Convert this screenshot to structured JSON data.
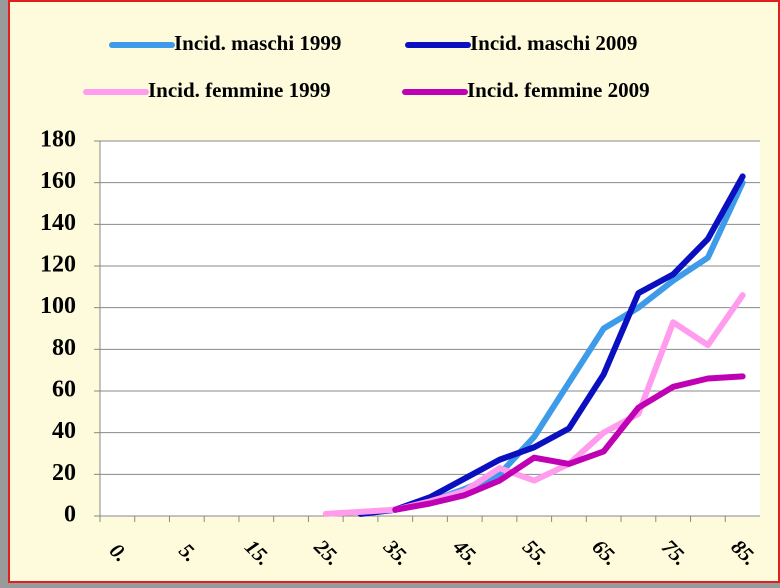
{
  "chart_data": {
    "type": "line",
    "categories": [
      "0.",
      null,
      "5.",
      null,
      "15.",
      null,
      "25.",
      null,
      "35.",
      null,
      "45.",
      null,
      "55.",
      null,
      "65.",
      null,
      "75.",
      null,
      "85."
    ],
    "series": [
      {
        "name": "Incid. maschi 1999",
        "color": "#3d9be9",
        "values": [
          null,
          null,
          null,
          null,
          null,
          null,
          null,
          1,
          3,
          7,
          13,
          20,
          38,
          64,
          90,
          100,
          113,
          124,
          160
        ]
      },
      {
        "name": "Incid. maschi 2009",
        "color": "#0a10c0",
        "values": [
          null,
          null,
          null,
          null,
          null,
          null,
          null,
          1,
          3,
          9,
          18,
          27,
          33,
          42,
          68,
          107,
          116,
          133,
          163
        ]
      },
      {
        "name": "Incid. femmine 1999",
        "color": "#ff9cee",
        "values": [
          null,
          null,
          null,
          null,
          null,
          null,
          1,
          2,
          3,
          7,
          12,
          23,
          17,
          25,
          40,
          49,
          93,
          82,
          106
        ]
      },
      {
        "name": "Incid. femmine 2009",
        "color": "#c000b4",
        "values": [
          null,
          null,
          null,
          null,
          null,
          null,
          null,
          null,
          3,
          6,
          10,
          17,
          28,
          25,
          31,
          52,
          62,
          66,
          67
        ]
      }
    ],
    "ylim": [
      0,
      180
    ],
    "yticks": [
      0,
      20,
      40,
      60,
      80,
      100,
      120,
      140,
      160,
      180
    ],
    "grid": true
  }
}
